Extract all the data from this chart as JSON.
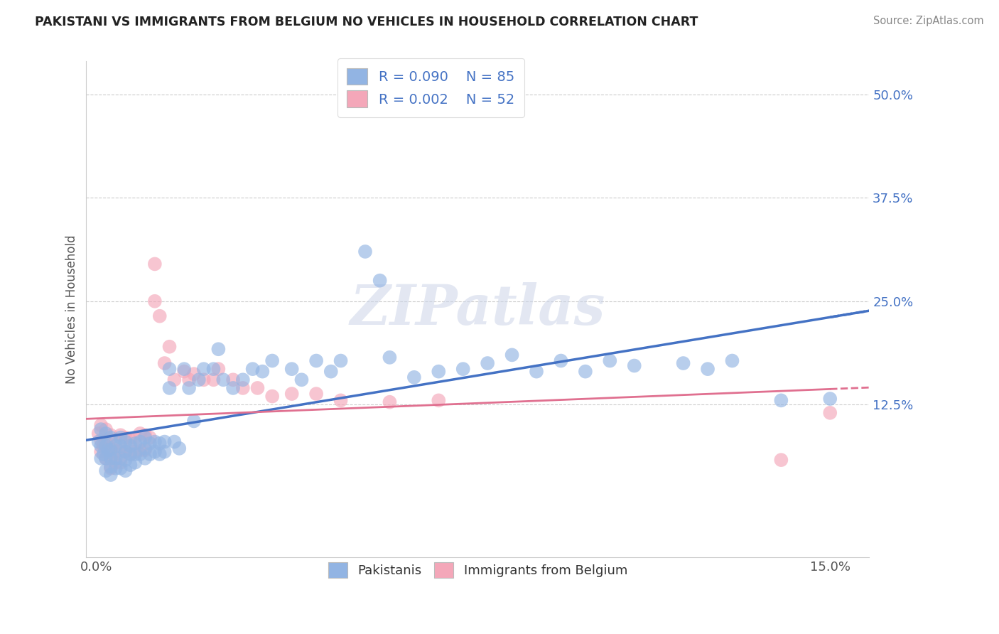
{
  "title": "PAKISTANI VS IMMIGRANTS FROM BELGIUM NO VEHICLES IN HOUSEHOLD CORRELATION CHART",
  "source": "Source: ZipAtlas.com",
  "ylabel": "No Vehicles in Household",
  "y_tick_labels": [
    "",
    "12.5%",
    "25.0%",
    "37.5%",
    "50.0%"
  ],
  "y_tick_vals": [
    0.0,
    0.125,
    0.25,
    0.375,
    0.5
  ],
  "xmin": -0.002,
  "xmax": 0.158,
  "ymin": -0.06,
  "ymax": 0.54,
  "r_pakistani": 0.09,
  "n_pakistani": 85,
  "r_belgium": 0.002,
  "n_belgium": 52,
  "color_pakistani": "#92b4e3",
  "color_belgium": "#f4a7b9",
  "color_pakistani_line": "#4472c4",
  "color_belgium_line": "#e07090",
  "legend_label_1": "Pakistanis",
  "legend_label_2": "Immigrants from Belgium",
  "watermark": "ZIPatlas",
  "pakistani_x": [
    0.0005,
    0.001,
    0.001,
    0.001,
    0.0015,
    0.002,
    0.002,
    0.002,
    0.002,
    0.0025,
    0.003,
    0.003,
    0.003,
    0.003,
    0.003,
    0.004,
    0.004,
    0.004,
    0.005,
    0.005,
    0.005,
    0.005,
    0.006,
    0.006,
    0.006,
    0.006,
    0.007,
    0.007,
    0.007,
    0.008,
    0.008,
    0.008,
    0.009,
    0.009,
    0.01,
    0.01,
    0.01,
    0.011,
    0.011,
    0.012,
    0.012,
    0.013,
    0.013,
    0.014,
    0.014,
    0.015,
    0.015,
    0.016,
    0.017,
    0.018,
    0.019,
    0.02,
    0.021,
    0.022,
    0.024,
    0.025,
    0.026,
    0.028,
    0.03,
    0.032,
    0.034,
    0.036,
    0.04,
    0.042,
    0.045,
    0.048,
    0.05,
    0.055,
    0.058,
    0.06,
    0.065,
    0.07,
    0.075,
    0.08,
    0.085,
    0.09,
    0.095,
    0.1,
    0.105,
    0.11,
    0.12,
    0.125,
    0.13,
    0.14,
    0.15
  ],
  "pakistani_y": [
    0.08,
    0.095,
    0.075,
    0.06,
    0.065,
    0.09,
    0.075,
    0.06,
    0.045,
    0.07,
    0.085,
    0.07,
    0.06,
    0.05,
    0.04,
    0.075,
    0.06,
    0.048,
    0.085,
    0.075,
    0.06,
    0.048,
    0.08,
    0.068,
    0.058,
    0.045,
    0.075,
    0.065,
    0.052,
    0.078,
    0.065,
    0.055,
    0.08,
    0.065,
    0.085,
    0.072,
    0.06,
    0.078,
    0.065,
    0.08,
    0.068,
    0.078,
    0.065,
    0.08,
    0.068,
    0.168,
    0.145,
    0.08,
    0.072,
    0.168,
    0.145,
    0.105,
    0.155,
    0.168,
    0.168,
    0.192,
    0.155,
    0.145,
    0.155,
    0.168,
    0.165,
    0.178,
    0.168,
    0.155,
    0.178,
    0.165,
    0.178,
    0.31,
    0.275,
    0.182,
    0.158,
    0.165,
    0.168,
    0.175,
    0.185,
    0.165,
    0.178,
    0.165,
    0.178,
    0.172,
    0.175,
    0.168,
    0.178,
    0.13,
    0.132
  ],
  "belgium_x": [
    0.0005,
    0.001,
    0.001,
    0.001,
    0.0015,
    0.002,
    0.002,
    0.002,
    0.003,
    0.003,
    0.003,
    0.003,
    0.004,
    0.004,
    0.004,
    0.005,
    0.005,
    0.005,
    0.006,
    0.006,
    0.007,
    0.007,
    0.008,
    0.008,
    0.009,
    0.009,
    0.01,
    0.01,
    0.011,
    0.012,
    0.012,
    0.013,
    0.014,
    0.015,
    0.016,
    0.018,
    0.019,
    0.02,
    0.022,
    0.024,
    0.025,
    0.028,
    0.03,
    0.033,
    0.036,
    0.04,
    0.045,
    0.05,
    0.06,
    0.07,
    0.14,
    0.15
  ],
  "belgium_y": [
    0.09,
    0.1,
    0.082,
    0.068,
    0.075,
    0.095,
    0.078,
    0.06,
    0.088,
    0.072,
    0.06,
    0.048,
    0.082,
    0.068,
    0.055,
    0.088,
    0.07,
    0.055,
    0.085,
    0.068,
    0.082,
    0.065,
    0.085,
    0.068,
    0.09,
    0.07,
    0.088,
    0.07,
    0.085,
    0.295,
    0.25,
    0.232,
    0.175,
    0.195,
    0.155,
    0.165,
    0.155,
    0.162,
    0.155,
    0.155,
    0.168,
    0.155,
    0.145,
    0.145,
    0.135,
    0.138,
    0.138,
    0.13,
    0.128,
    0.13,
    0.058,
    0.115
  ]
}
